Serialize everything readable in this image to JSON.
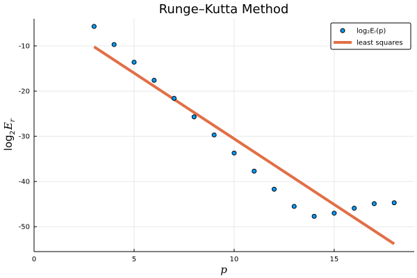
{
  "chart_data": {
    "type": "scatter",
    "title": "Runge–Kutta Method",
    "xlabel": "p",
    "ylabel": {
      "base": "log",
      "sub": "2",
      "var": "E",
      "varsub": "r"
    },
    "xlim": [
      0,
      19
    ],
    "ylim": [
      -55.5,
      -4
    ],
    "xticks": [
      0,
      5,
      10,
      15
    ],
    "yticks": [
      -10,
      -20,
      -30,
      -40,
      -50
    ],
    "grid": true,
    "legend_position": "top-right",
    "series": [
      {
        "name": "log₂Eᵣ(p)",
        "kind": "scatter",
        "color": "#009AFA",
        "x": [
          3,
          4,
          5,
          6,
          7,
          8,
          9,
          10,
          11,
          12,
          13,
          14,
          15,
          16,
          17,
          18
        ],
        "y": [
          -5.7,
          -9.7,
          -13.6,
          -17.6,
          -21.6,
          -25.7,
          -29.7,
          -33.7,
          -37.7,
          -41.7,
          -45.5,
          -47.7,
          -47.0,
          -45.9,
          -44.9,
          -44.7
        ]
      },
      {
        "name": "least squares",
        "kind": "line",
        "color": "#E26F46",
        "x": [
          3,
          18
        ],
        "y": [
          -10.2,
          -53.8
        ]
      }
    ]
  }
}
